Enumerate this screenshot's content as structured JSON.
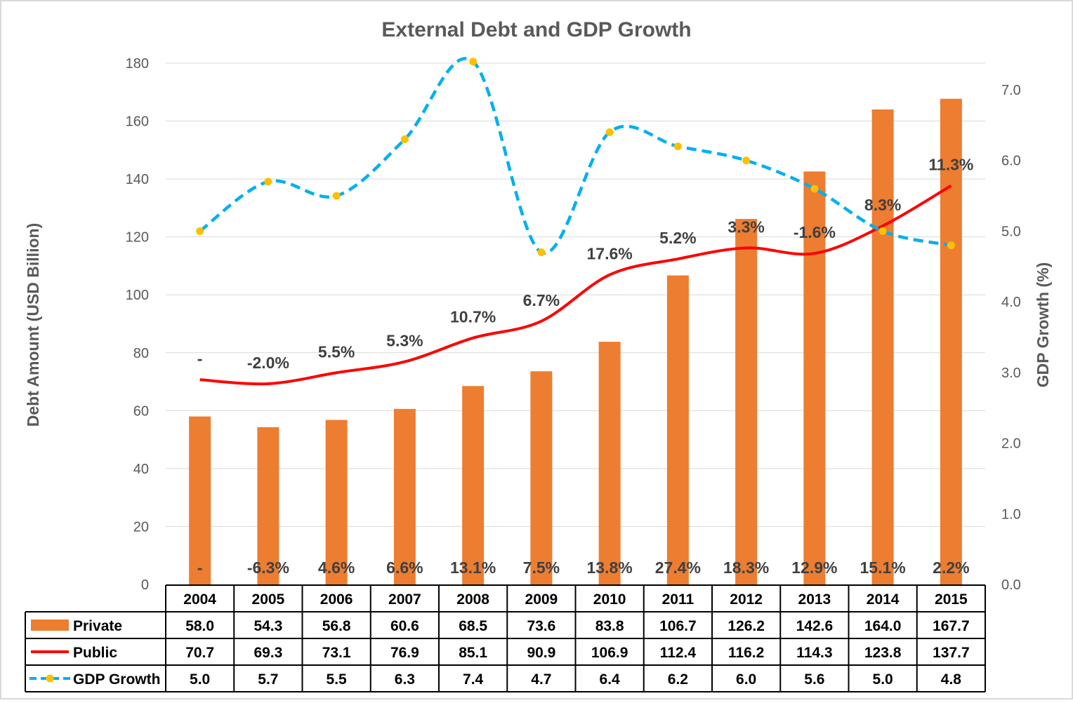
{
  "chart_data": {
    "type": "bar",
    "title": "External Debt and GDP Growth",
    "ylabel": "Debt Amount (USD Billion)",
    "y2label": "GDP Growth (%)",
    "ylim": [
      0,
      180
    ],
    "y2lim": [
      0,
      7.5
    ],
    "y_ticks": [
      "0",
      "20",
      "40",
      "60",
      "80",
      "100",
      "120",
      "140",
      "160",
      "180"
    ],
    "y2_ticks": [
      "0.0",
      "1.0",
      "2.0",
      "3.0",
      "4.0",
      "5.0",
      "6.0",
      "7.0"
    ],
    "grid": true,
    "legend": "data-table",
    "categories": [
      "2004",
      "2005",
      "2006",
      "2007",
      "2008",
      "2009",
      "2010",
      "2011",
      "2012",
      "2013",
      "2014",
      "2015"
    ],
    "series": [
      {
        "name": "Private",
        "type": "bar",
        "axis": "left",
        "color": "#ED7D31",
        "values": [
          58.0,
          54.3,
          56.8,
          60.6,
          68.5,
          73.6,
          83.8,
          106.7,
          126.2,
          142.6,
          164.0,
          167.7
        ],
        "display": [
          "58.0",
          "54.3",
          "56.8",
          "60.6",
          "68.5",
          "73.6",
          "83.8",
          "106.7",
          "126.2",
          "142.6",
          "164.0",
          "167.7"
        ],
        "growth_labels": [
          "-",
          "-6.3%",
          "4.6%",
          "6.6%",
          "13.1%",
          "7.5%",
          "13.8%",
          "27.4%",
          "18.3%",
          "12.9%",
          "15.1%",
          "2.2%"
        ]
      },
      {
        "name": "Public",
        "type": "line",
        "axis": "left",
        "color": "#FF0000",
        "values": [
          70.7,
          69.3,
          73.1,
          76.9,
          85.1,
          90.9,
          106.9,
          112.4,
          116.2,
          114.3,
          123.8,
          137.7
        ],
        "display": [
          "70.7",
          "69.3",
          "73.1",
          "76.9",
          "85.1",
          "90.9",
          "106.9",
          "112.4",
          "116.2",
          "114.3",
          "123.8",
          "137.7"
        ],
        "growth_labels": [
          "-",
          "-2.0%",
          "5.5%",
          "5.3%",
          "10.7%",
          "6.7%",
          "17.6%",
          "5.2%",
          "3.3%",
          "-1.6%",
          "8.3%",
          "11.3%"
        ]
      },
      {
        "name": "GDP Growth",
        "type": "line",
        "axis": "right",
        "color": "#00B0F0",
        "marker_color": "#FFC000",
        "values": [
          5.0,
          5.7,
          5.5,
          6.3,
          7.4,
          4.7,
          6.4,
          6.2,
          6.0,
          5.6,
          5.0,
          4.8
        ],
        "display": [
          "5.0",
          "5.7",
          "5.5",
          "6.3",
          "7.4",
          "4.7",
          "6.4",
          "6.2",
          "6.0",
          "5.6",
          "5.0",
          "4.8"
        ]
      }
    ]
  }
}
